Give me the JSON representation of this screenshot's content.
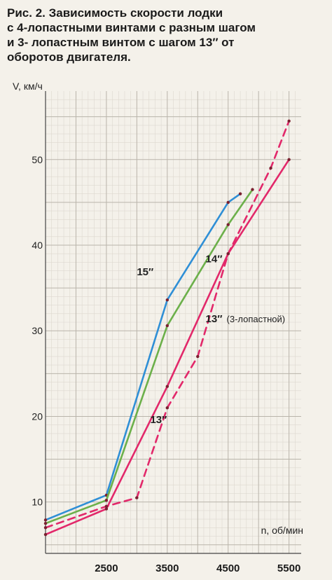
{
  "caption": {
    "lines": [
      "Рис. 2. Зависимость скорости лодки",
      "с 4-лопастными винтами с разным шагом",
      "и 3- лопастным винтом с шагом 13″ от",
      "оборотов двигателя."
    ]
  },
  "chart_data": {
    "type": "line",
    "title": "Рис. 2. Зависимость скорости лодки с 4-лопастными винтами с разным шагом и 3- лопастным винтом с шагом 13″ от оборотов двигателя.",
    "xlabel": "n, об/мин",
    "ylabel": "V, км/ч",
    "xlim": [
      1500,
      5700
    ],
    "ylim": [
      4,
      58
    ],
    "x_ticks": [
      2500,
      3500,
      4500,
      5500
    ],
    "y_ticks": [
      10,
      20,
      30,
      40,
      50
    ],
    "grid": true,
    "legend": "inline labels",
    "series": [
      {
        "name": "15″",
        "label_note": "",
        "color": "#2f8fd6",
        "dashed": false,
        "points": [
          [
            1500,
            7.9
          ],
          [
            2500,
            10.8
          ],
          [
            3500,
            33.6
          ],
          [
            4500,
            45.0
          ],
          [
            4700,
            46.0
          ]
        ],
        "label_at": [
          3000,
          36.5
        ]
      },
      {
        "name": "14″",
        "label_note": "",
        "color": "#6cb04a",
        "dashed": false,
        "points": [
          [
            1500,
            7.5
          ],
          [
            2500,
            10.2
          ],
          [
            3500,
            30.6
          ],
          [
            4500,
            42.4
          ],
          [
            4900,
            46.5
          ]
        ],
        "label_at": [
          4130,
          38.0
        ]
      },
      {
        "name": "13″",
        "label_note": "",
        "color": "#e2286a",
        "dashed": false,
        "points": [
          [
            1500,
            6.2
          ],
          [
            2500,
            9.2
          ],
          [
            3500,
            23.5
          ],
          [
            4500,
            39.0
          ],
          [
            5500,
            50.0
          ]
        ],
        "label_at": [
          3220,
          19.2
        ]
      },
      {
        "name": "13″",
        "label_note": "(3-лопастной)",
        "color": "#e2286a",
        "dashed": true,
        "points": [
          [
            1500,
            7.0
          ],
          [
            2500,
            9.5
          ],
          [
            3000,
            10.5
          ],
          [
            3500,
            21.0
          ],
          [
            4000,
            27.0
          ],
          [
            4500,
            39.0
          ],
          [
            5200,
            49.0
          ],
          [
            5500,
            54.5
          ]
        ],
        "label_at": [
          4130,
          31.0
        ]
      }
    ]
  }
}
